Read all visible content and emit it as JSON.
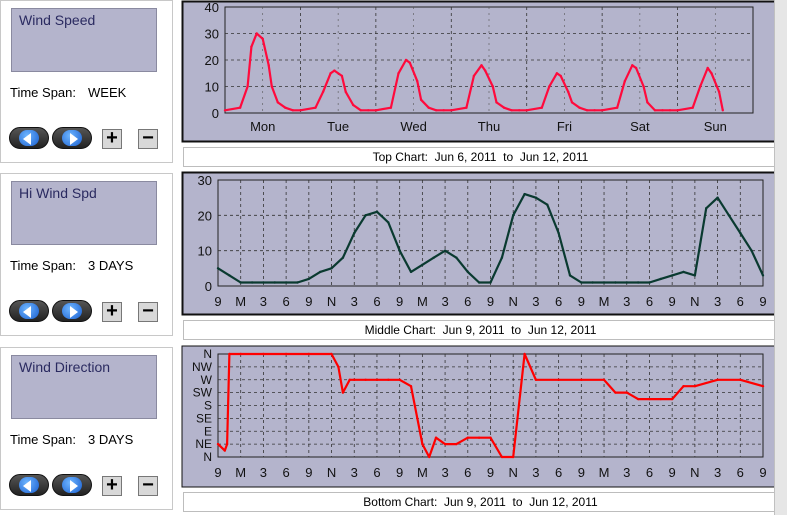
{
  "panels": [
    {
      "select_label": "Wind Speed",
      "timespan_label": "Time Span:",
      "timespan_value": "WEEK"
    },
    {
      "select_label": "Hi Wind Spd",
      "timespan_label": "Time Span:",
      "timespan_value": "3 DAYS"
    },
    {
      "select_label": "Wind Direction",
      "timespan_label": "Time Span:",
      "timespan_value": "3 DAYS"
    }
  ],
  "buttons": {
    "plus": "+",
    "minus": "−"
  },
  "captions": {
    "top": {
      "prefix": "Top Chart:",
      "start": "Jun 6, 2011",
      "to": "to",
      "end": "Jun 12, 2011"
    },
    "middle": {
      "prefix": "Middle Chart:",
      "start": "Jun 9, 2011",
      "to": "to",
      "end": "Jun 12, 2011"
    },
    "bottom": {
      "prefix": "Bottom Chart:",
      "start": "Jun 9, 2011",
      "to": "to",
      "end": "Jun 12, 2011"
    }
  },
  "colors": {
    "plot_bg": "#b4b4cc",
    "top_series": "#ff0a3c",
    "middle_series": "#0a3a30",
    "bottom_series": "#ff0000"
  },
  "chart_data": [
    {
      "type": "line",
      "ylim": [
        0,
        40
      ],
      "yticks": [
        "0",
        "10",
        "20",
        "30",
        "40"
      ],
      "xticks": [
        "Mon",
        "Tue",
        "Wed",
        "Thu",
        "Fri",
        "Sat",
        "Sun"
      ],
      "grid": true,
      "series": [
        {
          "x": [
            0,
            0.2,
            0.3,
            0.35,
            0.42,
            0.5,
            0.58,
            0.62,
            0.7,
            0.8,
            0.9,
            1.0,
            1.2,
            1.3,
            1.4,
            1.45,
            1.55,
            1.6,
            1.7,
            1.8,
            1.9,
            2.0,
            2.2,
            2.3,
            2.4,
            2.45,
            2.55,
            2.6,
            2.7,
            2.8,
            2.9,
            3.0,
            3.2,
            3.3,
            3.4,
            3.45,
            3.55,
            3.6,
            3.7,
            3.8,
            3.9,
            4.0,
            4.2,
            4.3,
            4.4,
            4.45,
            4.55,
            4.6,
            4.7,
            4.8,
            4.9,
            5.0,
            5.2,
            5.3,
            5.4,
            5.45,
            5.55,
            5.6,
            5.7,
            5.8,
            5.9,
            6.0,
            6.2,
            6.3,
            6.4,
            6.45,
            6.55,
            6.6
          ],
          "y": [
            1,
            2,
            10,
            25,
            30,
            28,
            18,
            10,
            4,
            2,
            1,
            1,
            2,
            8,
            15,
            16,
            14,
            8,
            3,
            1,
            1,
            1,
            2,
            15,
            20,
            19,
            12,
            5,
            2,
            1,
            1,
            1,
            2,
            14,
            18,
            16,
            10,
            4,
            2,
            1,
            1,
            1,
            2,
            10,
            15,
            14,
            8,
            4,
            2,
            1,
            1,
            1,
            2,
            12,
            18,
            17,
            10,
            4,
            1,
            1,
            1,
            1,
            2,
            10,
            17,
            15,
            8,
            1
          ]
        }
      ]
    },
    {
      "type": "line",
      "ylim": [
        0,
        30
      ],
      "yticks": [
        "0",
        "10",
        "20",
        "30"
      ],
      "xticks": [
        "9",
        "M",
        "3",
        "6",
        "9",
        "N",
        "3",
        "6",
        "9",
        "M",
        "3",
        "6",
        "9",
        "N",
        "3",
        "6",
        "9",
        "M",
        "3",
        "6",
        "9",
        "N",
        "3",
        "6",
        "9"
      ],
      "grid": true,
      "series": [
        {
          "x": [
            0,
            0.5,
            1,
            1.5,
            2,
            2.5,
            3,
            3.5,
            4,
            4.5,
            5,
            5.5,
            6,
            6.5,
            7,
            7.5,
            8,
            8.5,
            9,
            9.5,
            10,
            10.5,
            11,
            11.5,
            12,
            12.5,
            13,
            13.5,
            14,
            14.5,
            15,
            15.5,
            16,
            16.5,
            17,
            17.5,
            18,
            18.5,
            19,
            19.5,
            20,
            20.5,
            21,
            21.5,
            22,
            22.5,
            23,
            23.5,
            24
          ],
          "y": [
            5,
            3,
            1,
            1,
            1,
            1,
            1,
            1,
            2,
            4,
            5,
            8,
            15,
            20,
            21,
            18,
            10,
            4,
            6,
            8,
            10,
            8,
            4,
            1,
            1,
            8,
            20,
            26,
            25,
            23,
            15,
            3,
            1,
            1,
            1,
            1,
            1,
            1,
            1,
            2,
            3,
            4,
            3,
            22,
            25,
            20,
            15,
            10,
            3
          ]
        }
      ]
    },
    {
      "type": "line",
      "ylim": [
        0,
        8
      ],
      "yticks": [
        "N",
        "NE",
        "E",
        "SE",
        "S",
        "SW",
        "W",
        "NW",
        "N"
      ],
      "xticks": [
        "9",
        "M",
        "3",
        "6",
        "9",
        "N",
        "3",
        "6",
        "9",
        "M",
        "3",
        "6",
        "9",
        "N",
        "3",
        "6",
        "9",
        "M",
        "3",
        "6",
        "9",
        "N",
        "3",
        "6",
        "9"
      ],
      "grid": true,
      "series": [
        {
          "x": [
            0,
            0.3,
            0.4,
            0.5,
            1,
            2,
            3,
            4,
            5,
            5.3,
            5.5,
            5.8,
            6,
            6.5,
            7,
            7.5,
            8,
            8.5,
            9,
            9.3,
            9.6,
            10,
            10.5,
            11,
            11.5,
            12,
            12.5,
            13,
            13.5,
            14,
            15,
            16,
            17,
            17.5,
            18,
            18.5,
            19,
            19.5,
            20,
            20.5,
            21,
            22,
            23,
            24
          ],
          "y": [
            1,
            0.5,
            1,
            8,
            8,
            8,
            8,
            8,
            8,
            7,
            5,
            6,
            6,
            6,
            6,
            6,
            6,
            5.5,
            1,
            0,
            1.5,
            1,
            1,
            1.5,
            1.5,
            1.5,
            0,
            0,
            8,
            6,
            6,
            6,
            6,
            5,
            5,
            4.5,
            4.5,
            4.5,
            4.5,
            5.5,
            5.5,
            6,
            6,
            5.5
          ]
        }
      ]
    }
  ]
}
